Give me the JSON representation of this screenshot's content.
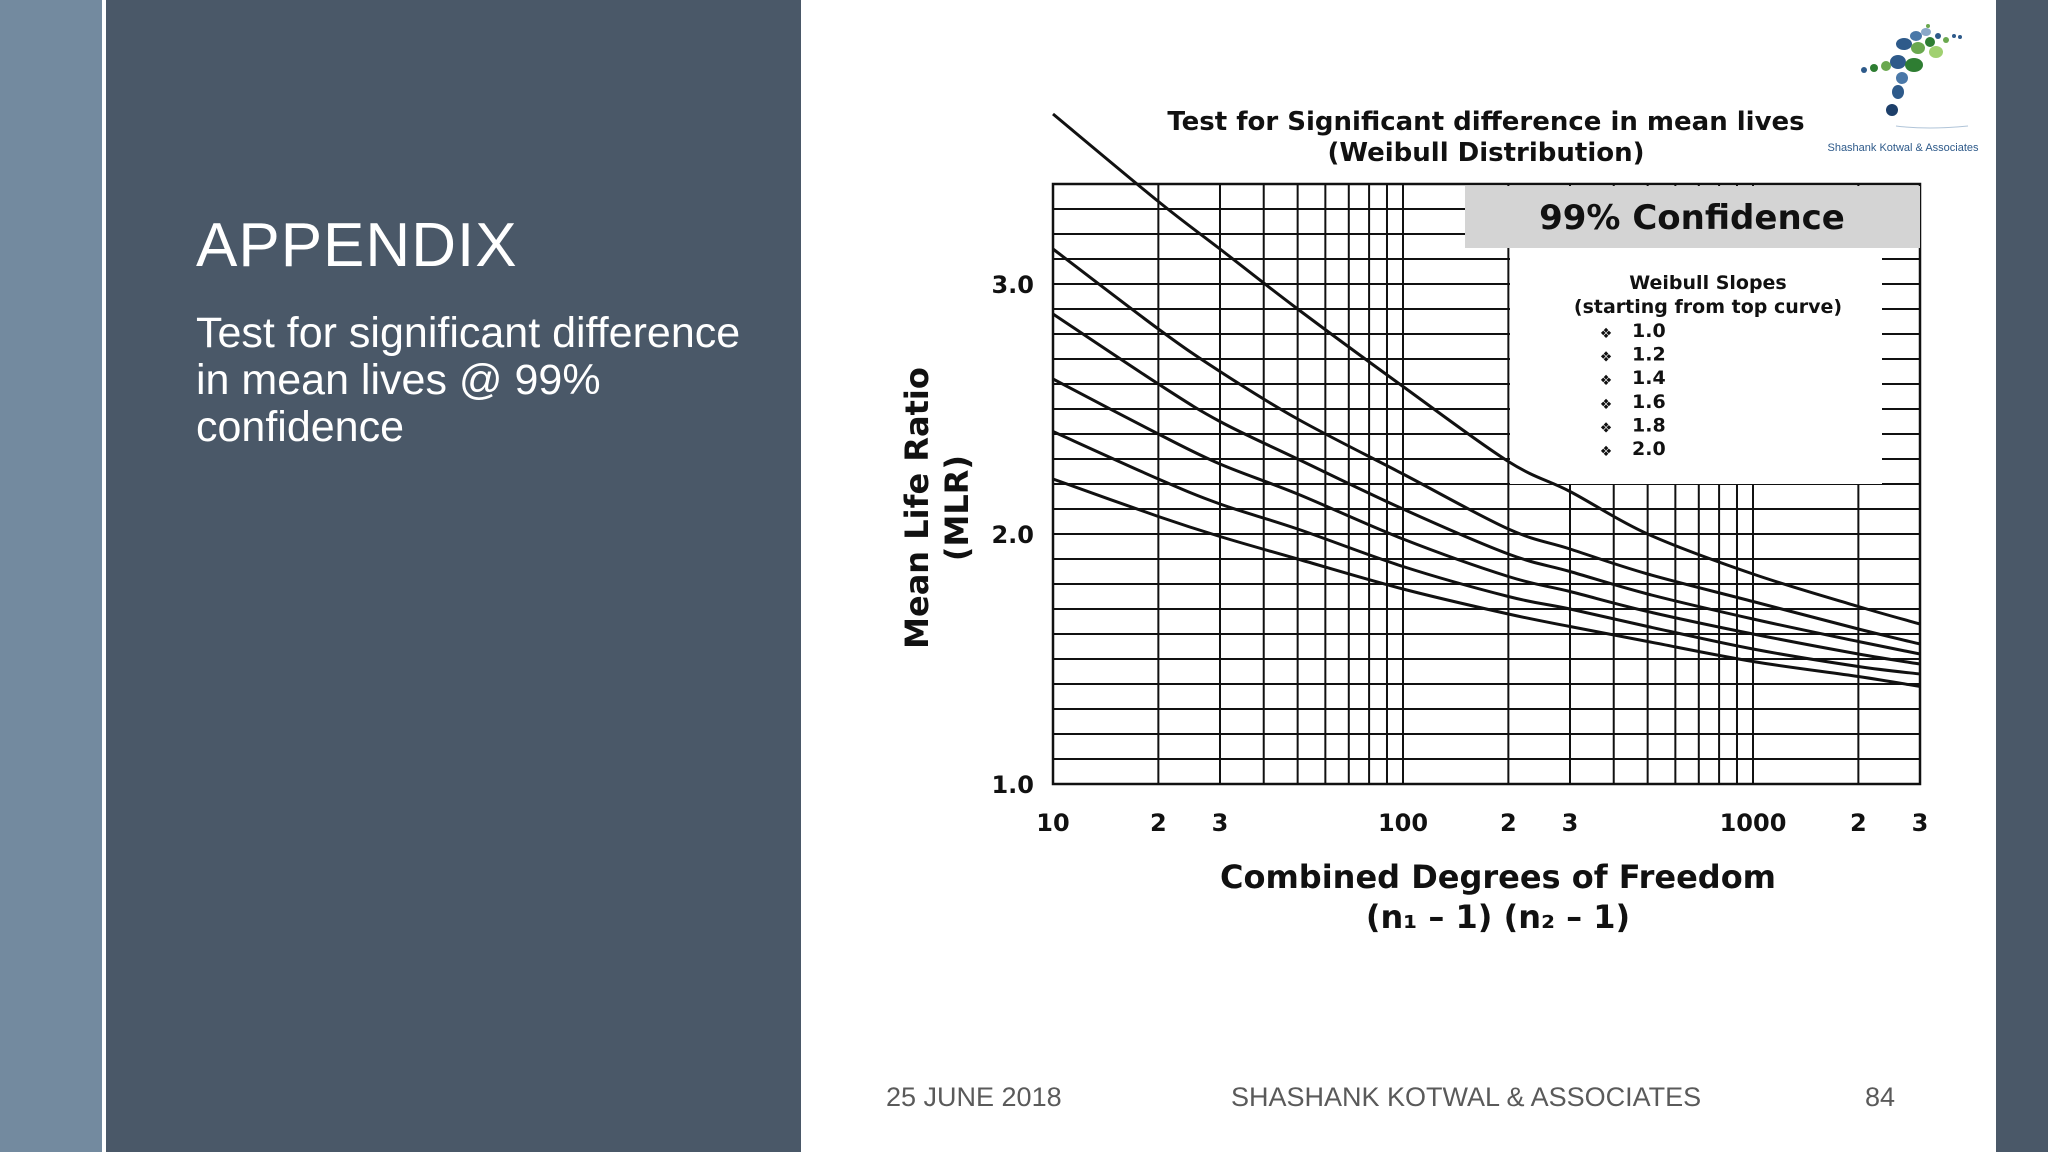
{
  "slide": {
    "title": "APPENDIX",
    "subtitle": "Test for significant difference in mean lives @ 99% confidence"
  },
  "logo": {
    "text": "Shashank Kotwal & Associates"
  },
  "footer": {
    "date": "25 JUNE 2018",
    "company": "SHASHANK KOTWAL & ASSOCIATES",
    "page": "84"
  },
  "colors": {
    "dark_panel": "#4a5868",
    "side_strip": "#738a9f",
    "confidence_box": "#d4d4d4",
    "chart_ink": "#111111"
  },
  "chart_data": {
    "type": "line",
    "title": "Test for Significant difference in mean lives",
    "subtitle": "(Weibull Distribution)",
    "badge": "99% Confidence",
    "xlabel": "Combined Degrees of Freedom",
    "xlabel_line2": "(n₁ – 1) (n₂ – 1)",
    "ylabel": "Mean Life Ratio",
    "ylabel_line2": "(MLR)",
    "x_scale": "log",
    "xlim": [
      10,
      3000
    ],
    "ylim": [
      1.0,
      3.4
    ],
    "grid": true,
    "x_ticks": [
      {
        "value": 10,
        "label": "10"
      },
      {
        "value": 20,
        "label": "2"
      },
      {
        "value": 30,
        "label": "3"
      },
      {
        "value": 100,
        "label": "100"
      },
      {
        "value": 200,
        "label": "2"
      },
      {
        "value": 300,
        "label": "3"
      },
      {
        "value": 1000,
        "label": "1000"
      },
      {
        "value": 2000,
        "label": "2"
      },
      {
        "value": 3000,
        "label": "3"
      }
    ],
    "y_ticks": [
      {
        "value": 1.0,
        "label": "1.0"
      },
      {
        "value": 2.0,
        "label": "2.0"
      },
      {
        "value": 3.0,
        "label": "3.0"
      }
    ],
    "legend": {
      "title": "Weibull Slopes",
      "subtitle": "(starting from top curve)",
      "placement": "top-right",
      "bullet": "❖",
      "items": [
        "1.0",
        "1.2",
        "1.4",
        "1.6",
        "1.8",
        "2.0"
      ]
    },
    "x": [
      10,
      20,
      30,
      50,
      100,
      200,
      300,
      500,
      1000,
      2000,
      3000
    ],
    "series": [
      {
        "values": [
          3.68,
          3.33,
          3.14,
          2.9,
          2.59,
          2.29,
          2.17,
          2.0,
          1.84,
          1.71,
          1.64
        ]
      },
      {
        "values": [
          3.14,
          2.82,
          2.65,
          2.46,
          2.24,
          2.02,
          1.94,
          1.84,
          1.73,
          1.62,
          1.56
        ]
      },
      {
        "values": [
          2.88,
          2.6,
          2.45,
          2.3,
          2.1,
          1.92,
          1.85,
          1.76,
          1.66,
          1.57,
          1.52
        ]
      },
      {
        "values": [
          2.62,
          2.4,
          2.28,
          2.16,
          1.98,
          1.83,
          1.77,
          1.69,
          1.6,
          1.52,
          1.48
        ]
      },
      {
        "values": [
          2.41,
          2.22,
          2.12,
          2.02,
          1.87,
          1.75,
          1.7,
          1.63,
          1.54,
          1.47,
          1.44
        ]
      },
      {
        "values": [
          2.22,
          2.07,
          1.99,
          1.9,
          1.78,
          1.68,
          1.63,
          1.57,
          1.49,
          1.43,
          1.39
        ]
      }
    ]
  }
}
